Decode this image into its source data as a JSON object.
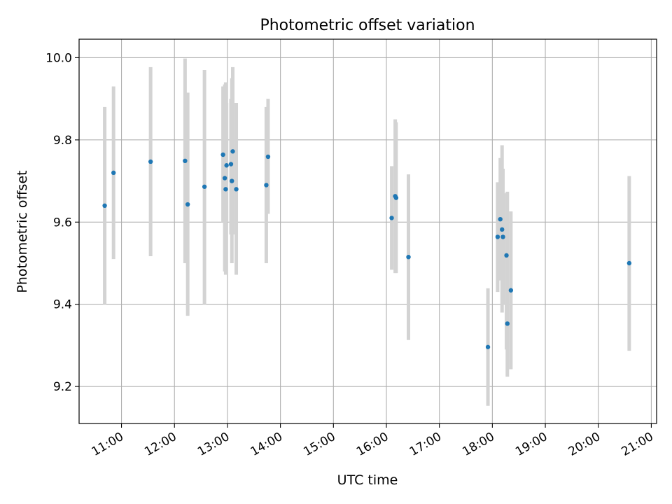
{
  "chart_data": {
    "type": "scatter",
    "title": "Photometric offset variation",
    "xlabel": "UTC time",
    "ylabel": "Photometric offset",
    "x_ticks": [
      "11:00",
      "12:00",
      "13:00",
      "14:00",
      "15:00",
      "16:00",
      "17:00",
      "18:00",
      "19:00",
      "20:00",
      "21:00"
    ],
    "y_ticks": [
      "9.2",
      "9.4",
      "9.6",
      "9.8",
      "10.0"
    ],
    "xlim": [
      "10:12",
      "21:06"
    ],
    "ylim": [
      9.11,
      10.045
    ],
    "grid": true,
    "colors": {
      "point": "#1f77b4",
      "errorbar": "#d3d3d3",
      "grid": "#b0b0b0"
    },
    "points": [
      {
        "x": "10:41",
        "y": 9.64,
        "lo": 9.4,
        "hi": 9.88
      },
      {
        "x": "10:51",
        "y": 9.72,
        "lo": 9.51,
        "hi": 9.93
      },
      {
        "x": "11:33",
        "y": 9.747,
        "lo": 9.517,
        "hi": 9.977
      },
      {
        "x": "12:12",
        "y": 9.749,
        "lo": 9.5,
        "hi": 9.998
      },
      {
        "x": "12:15",
        "y": 9.643,
        "lo": 9.372,
        "hi": 9.915
      },
      {
        "x": "12:34",
        "y": 9.686,
        "lo": 9.4,
        "hi": 9.97
      },
      {
        "x": "12:55",
        "y": 9.764,
        "lo": 9.6,
        "hi": 9.93
      },
      {
        "x": "12:57",
        "y": 9.707,
        "lo": 9.48,
        "hi": 9.935
      },
      {
        "x": "12:58",
        "y": 9.68,
        "lo": 9.472,
        "hi": 9.94
      },
      {
        "x": "12:59",
        "y": 9.738,
        "lo": 9.6,
        "hi": 9.89
      },
      {
        "x": "13:04",
        "y": 9.741,
        "lo": 9.57,
        "hi": 9.9
      },
      {
        "x": "13:05",
        "y": 9.7,
        "lo": 9.5,
        "hi": 9.95
      },
      {
        "x": "13:06",
        "y": 9.772,
        "lo": 9.57,
        "hi": 9.977
      },
      {
        "x": "13:10",
        "y": 9.68,
        "lo": 9.472,
        "hi": 9.89
      },
      {
        "x": "13:44",
        "y": 9.69,
        "lo": 9.5,
        "hi": 9.88
      },
      {
        "x": "13:46",
        "y": 9.759,
        "lo": 9.62,
        "hi": 9.9
      },
      {
        "x": "16:06",
        "y": 9.61,
        "lo": 9.484,
        "hi": 9.736
      },
      {
        "x": "16:10",
        "y": 9.663,
        "lo": 9.476,
        "hi": 9.85
      },
      {
        "x": "16:11",
        "y": 9.659,
        "lo": 9.476,
        "hi": 9.843
      },
      {
        "x": "16:25",
        "y": 9.515,
        "lo": 9.313,
        "hi": 9.716
      },
      {
        "x": "17:55",
        "y": 9.296,
        "lo": 9.153,
        "hi": 9.439
      },
      {
        "x": "18:06",
        "y": 9.564,
        "lo": 9.43,
        "hi": 9.697
      },
      {
        "x": "18:09",
        "y": 9.607,
        "lo": 9.458,
        "hi": 9.756
      },
      {
        "x": "18:11",
        "y": 9.582,
        "lo": 9.38,
        "hi": 9.787
      },
      {
        "x": "18:12",
        "y": 9.564,
        "lo": 9.4,
        "hi": 9.73
      },
      {
        "x": "18:16",
        "y": 9.519,
        "lo": 9.29,
        "hi": 9.67
      },
      {
        "x": "18:17",
        "y": 9.353,
        "lo": 9.224,
        "hi": 9.674
      },
      {
        "x": "18:21",
        "y": 9.434,
        "lo": 9.242,
        "hi": 9.626
      },
      {
        "x": "20:35",
        "y": 9.5,
        "lo": 9.287,
        "hi": 9.712
      }
    ]
  }
}
